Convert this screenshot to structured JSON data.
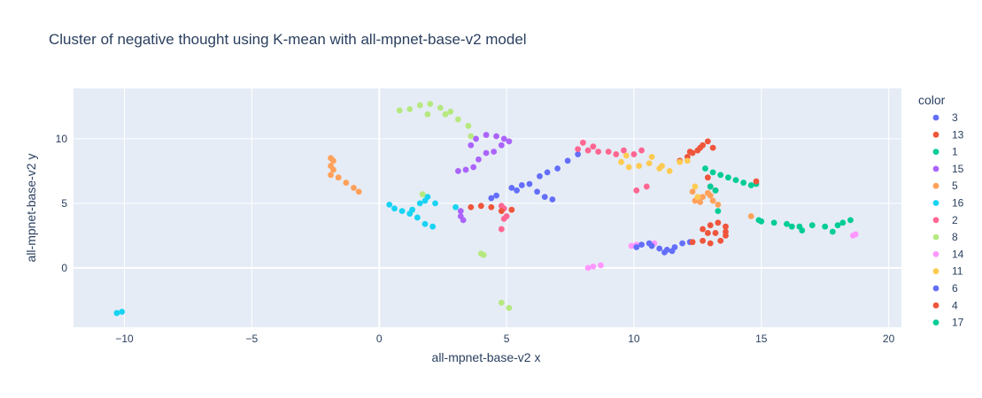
{
  "chart_data": {
    "type": "scatter",
    "title": "Cluster of negative thought using K-mean with all-mpnet-base-v2 model",
    "xlabel": "all-mpnet-base-v2 x",
    "ylabel": "all-mpnet-base-v2 y",
    "xlim": [
      -12,
      20.5
    ],
    "ylim": [
      -4.6,
      13.9
    ],
    "xticks": [
      -10,
      -5,
      0,
      5,
      10,
      15,
      20
    ],
    "xtick_labels": [
      "−10",
      "−5",
      "0",
      "5",
      "10",
      "15",
      "20"
    ],
    "yticks": [
      0,
      5,
      10
    ],
    "ytick_labels": [
      "0",
      "5",
      "10"
    ],
    "grid": true,
    "legend_position": "right",
    "legend_title": "color",
    "series": [
      {
        "name": "3",
        "color": "#636efa",
        "points": [
          [
            4.6,
            5.6
          ],
          [
            5.2,
            6.2
          ],
          [
            5.6,
            6.4
          ],
          [
            5.9,
            6.5
          ],
          [
            6.3,
            7.1
          ],
          [
            6.6,
            7.4
          ],
          [
            7,
            7.7
          ],
          [
            7.4,
            8.3
          ],
          [
            7.8,
            8.8
          ],
          [
            6.2,
            5.9
          ],
          [
            6.5,
            5.5
          ],
          [
            6.8,
            5.3
          ],
          [
            5.4,
            6.0
          ],
          [
            4.4,
            5.4
          ]
        ]
      },
      {
        "name": "13",
        "color": "#ef553b",
        "points": [
          [
            11.8,
            8.3
          ],
          [
            12.1,
            8.6
          ],
          [
            12.3,
            8.9
          ],
          [
            12.5,
            9.1
          ],
          [
            12.7,
            9.5
          ],
          [
            12.9,
            9.8
          ],
          [
            13.1,
            9.3
          ],
          [
            12.9,
            7.0
          ],
          [
            13,
            6.3
          ],
          [
            13.2,
            6.0
          ],
          [
            12.2,
            9.0
          ],
          [
            12.6,
            9.3
          ]
        ]
      },
      {
        "name": "1",
        "color": "#00cc96",
        "points": [
          [
            12.8,
            7.7
          ],
          [
            13.1,
            7.4
          ],
          [
            13.4,
            7.2
          ],
          [
            13.7,
            7.0
          ],
          [
            14,
            6.8
          ],
          [
            14.3,
            6.6
          ],
          [
            14.6,
            6.4
          ],
          [
            14.8,
            6.5
          ],
          [
            13.0,
            6.3
          ],
          [
            13.2,
            6.0
          ],
          [
            13.3,
            4.4
          ]
        ]
      },
      {
        "name": "15",
        "color": "#ab63fa",
        "points": [
          [
            3.1,
            7.5
          ],
          [
            3.4,
            7.6
          ],
          [
            3.7,
            7.8
          ],
          [
            3.9,
            8.4
          ],
          [
            4.2,
            8.9
          ],
          [
            3.6,
            9.5
          ],
          [
            3.8,
            10.0
          ],
          [
            4.5,
            9.0
          ],
          [
            4.8,
            9.5
          ],
          [
            5.1,
            9.8
          ],
          [
            4.2,
            10.3
          ],
          [
            4.6,
            10.2
          ],
          [
            3.2,
            4.4
          ],
          [
            3.3,
            3.7
          ],
          [
            3.2,
            4.0
          ],
          [
            4.9,
            10.0
          ]
        ]
      },
      {
        "name": "5",
        "color": "#ffa15a",
        "points": [
          [
            -1.9,
            8.5
          ],
          [
            -1.8,
            7.6
          ],
          [
            -1.9,
            7.2
          ],
          [
            -1.6,
            7.0
          ],
          [
            -1.3,
            6.6
          ],
          [
            -1.0,
            6.2
          ],
          [
            -0.8,
            5.9
          ],
          [
            -1.9,
            7.9
          ],
          [
            12.3,
            5.9
          ],
          [
            12.7,
            5.5
          ],
          [
            12.9,
            5.8
          ],
          [
            13.0,
            5.6
          ],
          [
            13.1,
            5.2
          ],
          [
            13.3,
            4.9
          ],
          [
            12.6,
            5.1
          ],
          [
            14.6,
            4.0
          ],
          [
            12.4,
            5.2
          ],
          [
            -1.8,
            8.3
          ]
        ]
      },
      {
        "name": "16",
        "color": "#19d3f3",
        "points": [
          [
            0.4,
            4.9
          ],
          [
            0.6,
            4.6
          ],
          [
            0.9,
            4.4
          ],
          [
            1.2,
            4.2
          ],
          [
            1.5,
            3.9
          ],
          [
            1.8,
            3.4
          ],
          [
            2.1,
            3.2
          ],
          [
            1.8,
            5.2
          ],
          [
            1.6,
            5.0
          ],
          [
            2.2,
            5.0
          ],
          [
            3.0,
            4.7
          ],
          [
            1.3,
            4.5
          ],
          [
            -10.1,
            -3.4
          ],
          [
            -10.3,
            -3.5
          ],
          [
            1.9,
            5.5
          ]
        ]
      },
      {
        "name": "2",
        "color": "#ff6692",
        "points": [
          [
            7.8,
            9.2
          ],
          [
            8.2,
            9.1
          ],
          [
            8.6,
            9.0
          ],
          [
            9,
            9.0
          ],
          [
            9.3,
            8.8
          ],
          [
            8.0,
            9.7
          ],
          [
            8.4,
            9.4
          ],
          [
            9.6,
            9.1
          ],
          [
            10.3,
            9.1
          ],
          [
            10.0,
            8.8
          ],
          [
            10.1,
            6.0
          ],
          [
            10.5,
            6.3
          ],
          [
            4.8,
            4.8
          ],
          [
            4.9,
            3.8
          ],
          [
            4.8,
            3.0
          ],
          [
            5.0,
            4.0
          ],
          [
            4.9,
            4.6
          ]
        ]
      },
      {
        "name": "8",
        "color": "#b6e880",
        "points": [
          [
            0.8,
            12.2
          ],
          [
            1.2,
            12.3
          ],
          [
            1.6,
            12.6
          ],
          [
            2,
            12.7
          ],
          [
            2.4,
            12.4
          ],
          [
            2.8,
            12.1
          ],
          [
            3.1,
            11.5
          ],
          [
            3.5,
            11.0
          ],
          [
            3.6,
            10.2
          ],
          [
            1.9,
            11.9
          ],
          [
            2.6,
            11.9
          ],
          [
            4.0,
            1.1
          ],
          [
            4.1,
            1.0
          ],
          [
            4.8,
            -2.7
          ],
          [
            5.1,
            -3.1
          ],
          [
            1.7,
            5.7
          ]
        ]
      },
      {
        "name": "14",
        "color": "#ff97ff",
        "points": [
          [
            8.4,
            0.1
          ],
          [
            8.7,
            0.2
          ],
          [
            8.2,
            0.0
          ],
          [
            9.9,
            1.7
          ],
          [
            10.1,
            1.8
          ],
          [
            18.6,
            2.5
          ],
          [
            18.7,
            2.6
          ],
          [
            10.8,
            1.9
          ]
        ]
      },
      {
        "name": "11",
        "color": "#fecb52",
        "points": [
          [
            9.5,
            8.2
          ],
          [
            9.8,
            7.8
          ],
          [
            10.2,
            7.9
          ],
          [
            10.6,
            8.1
          ],
          [
            11,
            7.7
          ],
          [
            11.4,
            7.5
          ],
          [
            11.8,
            8.2
          ],
          [
            12.1,
            8.3
          ],
          [
            10.7,
            8.6
          ],
          [
            9.7,
            8.7
          ],
          [
            11.1,
            7.9
          ],
          [
            12.4,
            6.3
          ],
          [
            12.5,
            5.5
          ]
        ]
      },
      {
        "name": "6",
        "color": "#636efa",
        "points": [
          [
            10.3,
            1.8
          ],
          [
            10.7,
            1.7
          ],
          [
            11,
            1.5
          ],
          [
            11.3,
            1.4
          ],
          [
            11.6,
            1.6
          ],
          [
            11.9,
            1.9
          ],
          [
            12.2,
            2.0
          ],
          [
            10.1,
            1.6
          ],
          [
            11.5,
            1.3
          ],
          [
            11.2,
            1.2
          ],
          [
            10.6,
            1.9
          ]
        ]
      },
      {
        "name": "4",
        "color": "#ef553b",
        "points": [
          [
            12.3,
            2.0
          ],
          [
            12.7,
            2.1
          ],
          [
            13,
            1.9
          ],
          [
            13.4,
            2.1
          ],
          [
            13.6,
            2.5
          ],
          [
            12.7,
            3.0
          ],
          [
            13,
            3.3
          ],
          [
            13.3,
            3.5
          ],
          [
            13.6,
            3.2
          ],
          [
            12.9,
            2.7
          ],
          [
            13.6,
            2.8
          ],
          [
            3.6,
            4.7
          ],
          [
            4.0,
            4.8
          ],
          [
            4.4,
            4.7
          ],
          [
            4.8,
            4.4
          ],
          [
            5.2,
            4.5
          ],
          [
            14.8,
            6.7
          ],
          [
            13.2,
            2.7
          ]
        ]
      },
      {
        "name": "17",
        "color": "#00cc96",
        "points": [
          [
            15,
            3.6
          ],
          [
            15.5,
            3.5
          ],
          [
            16,
            3.4
          ],
          [
            16.5,
            3.2
          ],
          [
            17,
            3.3
          ],
          [
            17.5,
            3.2
          ],
          [
            18,
            3.3
          ],
          [
            18.5,
            3.7
          ],
          [
            16.6,
            2.9
          ],
          [
            17.8,
            2.8
          ],
          [
            14.9,
            3.7
          ],
          [
            18.2,
            3.5
          ],
          [
            16.2,
            3.2
          ]
        ]
      }
    ]
  }
}
